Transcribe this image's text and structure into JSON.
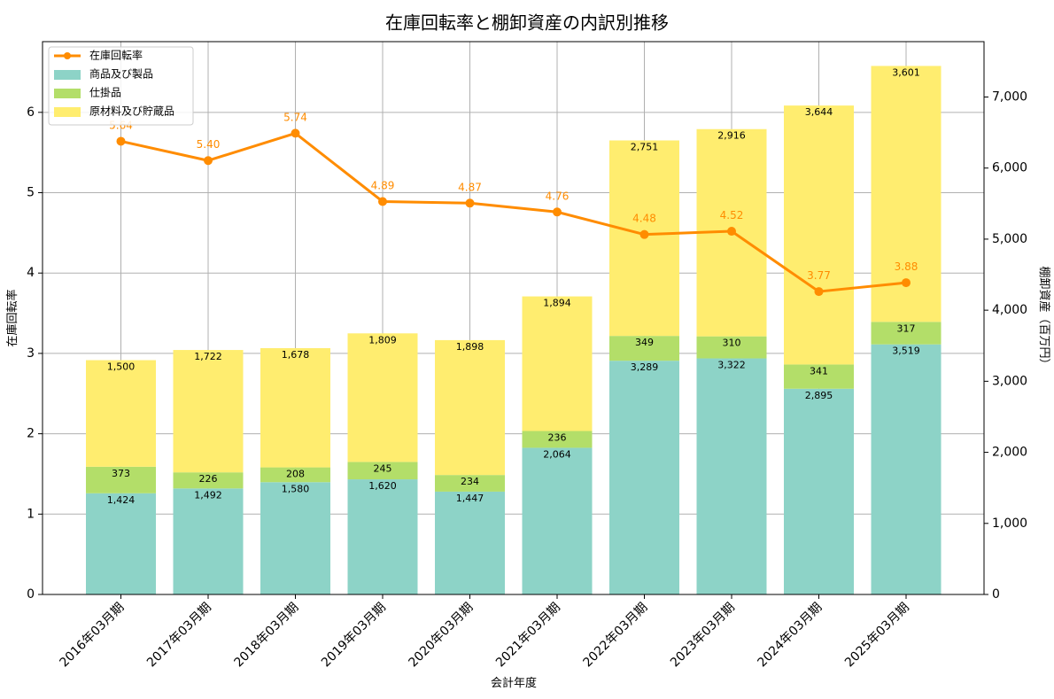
{
  "chart_data": {
    "type": "bar",
    "title": "在庫回転率と棚卸資産の内訳別推移",
    "xlabel": "会計年度",
    "ylabel_left": "在庫回転率",
    "ylabel_right": "棚卸資産（百万円）",
    "ylim_left": [
      0,
      6.88
    ],
    "ylim_right": [
      0,
      7779
    ],
    "yticks_left": [
      "0",
      "1",
      "2",
      "3",
      "4",
      "5",
      "6"
    ],
    "yticks_right": [
      "0",
      "1,000",
      "2,000",
      "3,000",
      "4,000",
      "5,000",
      "6,000",
      "7,000"
    ],
    "grid": true,
    "legend_position": "top-left",
    "categories": [
      "2016年03月期",
      "2017年03月期",
      "2018年03月期",
      "2019年03月期",
      "2020年03月期",
      "2021年03月期",
      "2022年03月期",
      "2023年03月期",
      "2024年03月期",
      "2025年03月期"
    ],
    "series": [
      {
        "name": "在庫回転率",
        "type": "line",
        "axis": "left",
        "color": "#ff8c00",
        "values": [
          5.64,
          5.4,
          5.74,
          4.89,
          4.87,
          4.76,
          4.48,
          4.52,
          3.77,
          3.88
        ],
        "labels": [
          "5.64",
          "5.40",
          "5.74",
          "4.89",
          "4.87",
          "4.76",
          "4.48",
          "4.52",
          "3.77",
          "3.88"
        ]
      },
      {
        "name": "商品及び製品",
        "type": "bar",
        "axis": "right",
        "color": "#8dd3c7",
        "values": [
          1424,
          1492,
          1580,
          1620,
          1447,
          2064,
          3289,
          3322,
          2895,
          3519
        ],
        "labels": [
          "1,424",
          "1,492",
          "1,580",
          "1,620",
          "1,447",
          "2,064",
          "3,289",
          "3,322",
          "2,895",
          "3,519"
        ]
      },
      {
        "name": "仕掛品",
        "type": "bar",
        "axis": "right",
        "color": "#b3de69",
        "values": [
          373,
          226,
          208,
          245,
          234,
          236,
          349,
          310,
          341,
          317
        ],
        "labels": [
          "373",
          "226",
          "208",
          "245",
          "234",
          "236",
          "349",
          "310",
          "341",
          "317"
        ]
      },
      {
        "name": "原材料及び貯蔵品",
        "type": "bar",
        "axis": "right",
        "color": "#ffed6f",
        "values": [
          1500,
          1722,
          1678,
          1809,
          1898,
          1894,
          2751,
          2916,
          3644,
          3601
        ],
        "labels": [
          "1,500",
          "1,722",
          "1,678",
          "1,809",
          "1,898",
          "1,894",
          "2,751",
          "2,916",
          "3,644",
          "3,601"
        ]
      }
    ]
  }
}
